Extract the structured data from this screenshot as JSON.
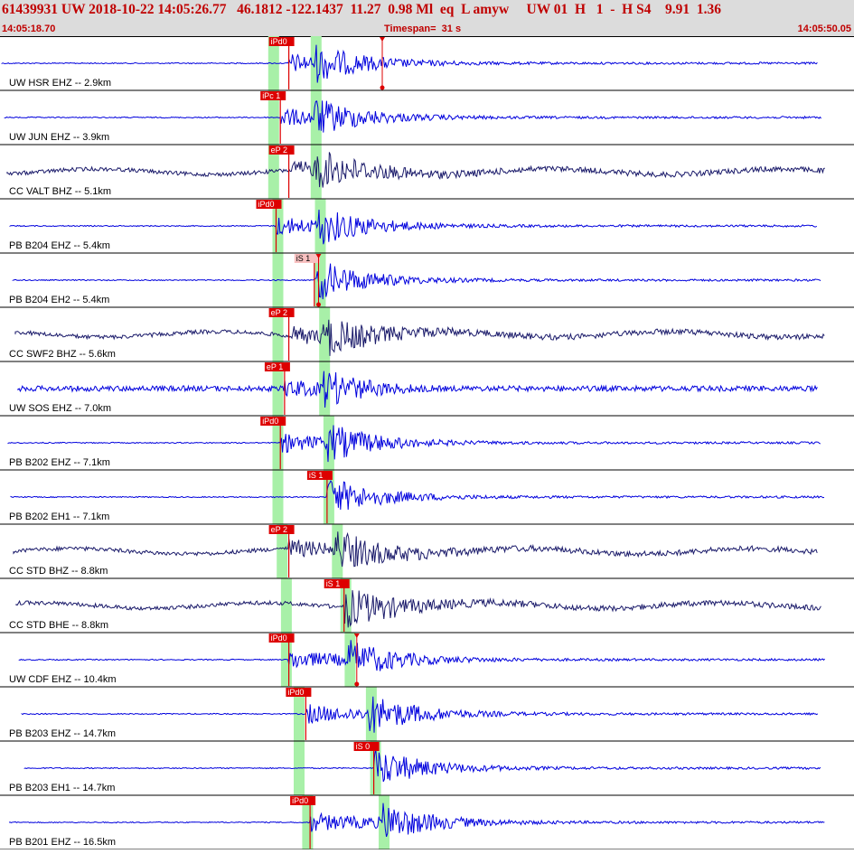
{
  "header": {
    "event_line": "61439931 UW 2018-10-22 14:05:26.77   46.1812 -122.1437  11.27  0.98 Ml  eq  L amyw     UW 01  H   1  -  H S4    9.91  1.36",
    "start_time": "14:05:18.70",
    "timespan": "Timespan=  31 s",
    "end_time": "14:05:50.05"
  },
  "colors": {
    "trace_blue": "#0000dd",
    "trace_navy": "#1a1a6a",
    "pick_red": "#dd0000",
    "pick_pink": "#f8c0c0",
    "window_green": "#a8f0a8",
    "header_bg": "#dcdcdc"
  },
  "traces": [
    {
      "label": "UW HSR EHZ -- 2.9km",
      "color": "blue",
      "pick": {
        "text": "iPd0",
        "pos": 0.34
      },
      "pick2": {
        "pos": 0.45
      },
      "green": [
        0.32,
        0.37
      ]
    },
    {
      "label": "UW JUN EHZ -- 3.9km",
      "color": "blue",
      "pick": {
        "text": "iPc 1",
        "pos": 0.33
      },
      "green": [
        0.32,
        0.37
      ]
    },
    {
      "label": "CC VALT BHZ -- 5.1km",
      "color": "navy",
      "pick": {
        "text": "eP 2",
        "pos": 0.34
      },
      "green": [
        0.32,
        0.37
      ]
    },
    {
      "label": "PB B204 EHZ -- 5.4km",
      "color": "blue",
      "pick": {
        "text": "iPd0",
        "pos": 0.325
      },
      "green": [
        0.325,
        0.375
      ]
    },
    {
      "label": "PB B204 EH2 -- 5.4km",
      "color": "blue",
      "pick": {
        "text": "iS 1",
        "pos": 0.37,
        "pink": true
      },
      "pick2": {
        "pos": 0.375
      },
      "green": [
        0.325,
        0.375
      ]
    },
    {
      "label": "CC SWF2 BHZ -- 5.6km",
      "color": "navy",
      "pick": {
        "text": "eP 2",
        "pos": 0.34
      },
      "green": [
        0.325,
        0.38
      ]
    },
    {
      "label": "UW SOS EHZ -- 7.0km",
      "color": "blue",
      "pick": {
        "text": "eP 1",
        "pos": 0.335
      },
      "green": [
        0.325,
        0.38
      ]
    },
    {
      "label": "PB B202 EHZ -- 7.1km",
      "color": "blue",
      "pick": {
        "text": "iPd0",
        "pos": 0.33
      },
      "green": [
        0.325,
        0.385
      ]
    },
    {
      "label": "PB B202 EH1 -- 7.1km",
      "color": "blue",
      "pick": {
        "text": "iS 1",
        "pos": 0.385
      },
      "green": [
        0.325,
        0.385
      ]
    },
    {
      "label": "CC STD BHZ -- 8.8km",
      "color": "navy",
      "pick": {
        "text": "eP 2",
        "pos": 0.34
      },
      "green": [
        0.33,
        0.395
      ]
    },
    {
      "label": "CC STD BHE -- 8.8km",
      "color": "navy",
      "pick": {
        "text": "iS 1",
        "pos": 0.405
      },
      "green": [
        0.335,
        0.405
      ]
    },
    {
      "label": "UW CDF EHZ -- 10.4km",
      "color": "blue",
      "pick": {
        "text": "iPd0",
        "pos": 0.34
      },
      "pick2": {
        "pos": 0.42
      },
      "green": [
        0.335,
        0.41
      ]
    },
    {
      "label": "PB B203 EHZ -- 14.7km",
      "color": "blue",
      "pick": {
        "text": "iPd0",
        "pos": 0.36
      },
      "green": [
        0.35,
        0.435
      ]
    },
    {
      "label": "PB B203 EH1 -- 14.7km",
      "color": "blue",
      "pick": {
        "text": "iS 0",
        "pos": 0.44
      },
      "green": [
        0.35,
        0.44
      ]
    },
    {
      "label": "PB B201 EHZ -- 16.5km",
      "color": "blue",
      "pick": {
        "text": "iPd0",
        "pos": 0.365
      },
      "green": [
        0.36,
        0.45
      ]
    }
  ]
}
